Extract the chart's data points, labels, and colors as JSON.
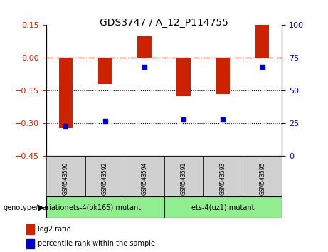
{
  "title": "GDS3747 / A_12_P114755",
  "samples": [
    "GSM543590",
    "GSM543592",
    "GSM543594",
    "GSM543591",
    "GSM543593",
    "GSM543595"
  ],
  "log2_ratios": [
    -0.32,
    -0.12,
    0.1,
    -0.175,
    -0.165,
    0.15
  ],
  "percentile_ranks": [
    23,
    27,
    68,
    28,
    28,
    68
  ],
  "groups": [
    {
      "label": "ets-4(ok165) mutant",
      "samples": [
        0,
        1,
        2
      ],
      "color": "#90EE90"
    },
    {
      "label": "ets-4(uz1) mutant",
      "samples": [
        3,
        4,
        5
      ],
      "color": "#90EE90"
    }
  ],
  "group_colors": [
    "#c8c8c8",
    "#90ee90"
  ],
  "bar_color": "#cc2200",
  "dot_color": "#0000cc",
  "ylim_left": [
    -0.45,
    0.15
  ],
  "ylim_right": [
    0,
    100
  ],
  "yticks_left": [
    0.15,
    0,
    -0.15,
    -0.3,
    -0.45
  ],
  "yticks_right": [
    100,
    75,
    50,
    25,
    0
  ],
  "hline_y": 0,
  "dotted_lines": [
    -0.15,
    -0.3
  ],
  "background_color": "#ffffff"
}
